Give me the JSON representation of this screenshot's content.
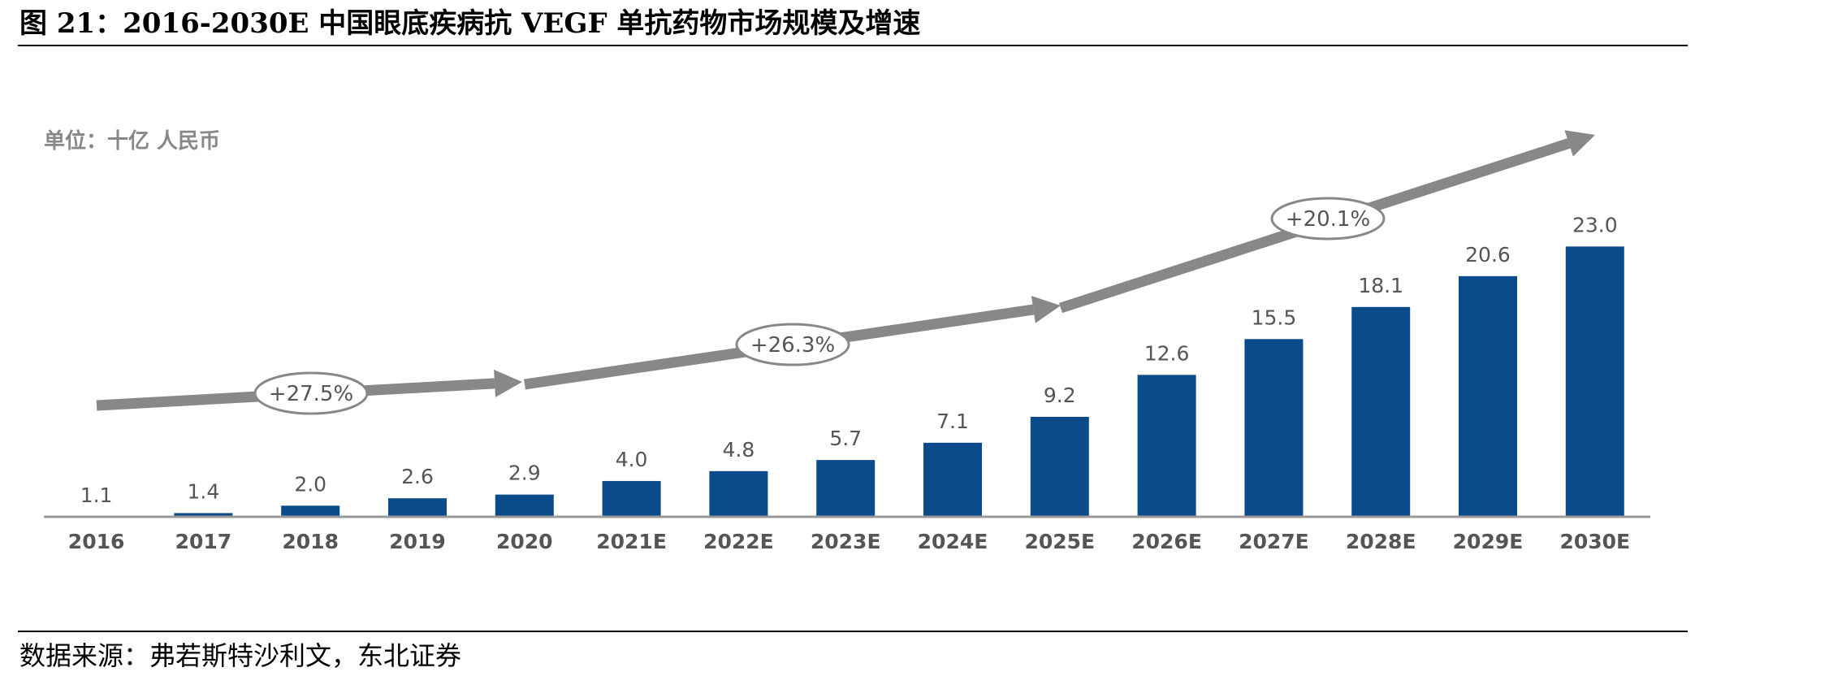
{
  "chart_data": {
    "type": "bar",
    "title": "图 21：2016-2030E 中国眼底疾病抗 VEGF 单抗药物市场规模及增速",
    "unit": "单位：十亿 人民币",
    "source": "数据来源：弗若斯特沙利文，东北证券",
    "categories": [
      "2016",
      "2017",
      "2018",
      "2019",
      "2020",
      "2021E",
      "2022E",
      "2023E",
      "2024E",
      "2025E",
      "2026E",
      "2027E",
      "2028E",
      "2029E",
      "2030E"
    ],
    "values": [
      1.1,
      1.4,
      2.0,
      2.6,
      2.9,
      4.0,
      4.8,
      5.7,
      7.1,
      9.2,
      12.6,
      15.5,
      18.1,
      20.6,
      23.0
    ],
    "value_labels": [
      "1.1",
      "1.4",
      "2.0",
      "2.6",
      "2.9",
      "4.0",
      "4.8",
      "5.7",
      "7.1",
      "9.2",
      "12.6",
      "15.5",
      "18.1",
      "20.6",
      "23.0"
    ],
    "color": "#0b4a8b",
    "ylim": [
      1.1,
      25
    ],
    "annotations": [
      "+27.5%",
      "+26.3%",
      "+20.1%"
    ]
  }
}
